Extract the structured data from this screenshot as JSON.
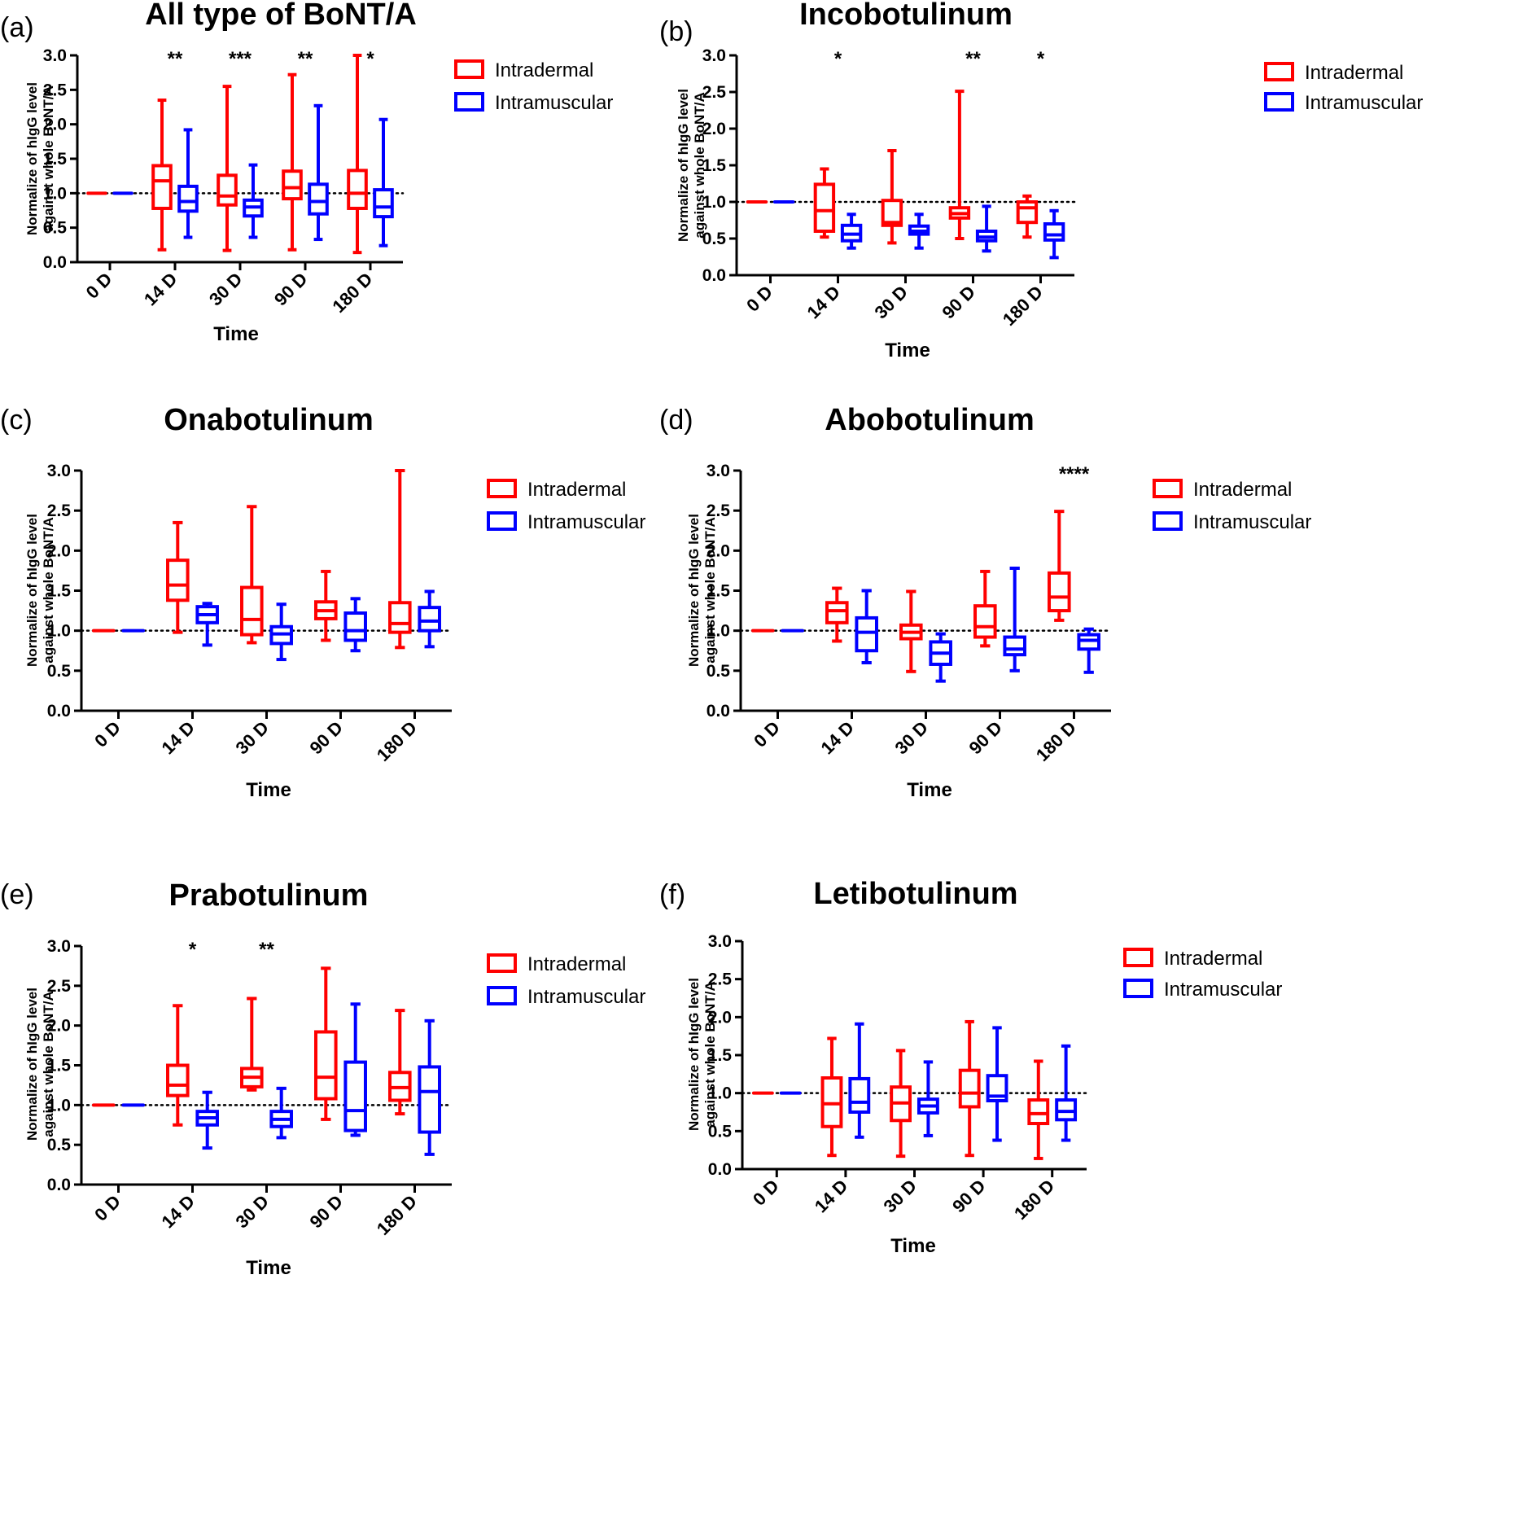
{
  "figure": {
    "colors": {
      "intradermal": "#ff0000",
      "intramuscular": "#0000ff",
      "axis": "#000000"
    }
  },
  "chart_data": [
    {
      "panel_label": "(a)",
      "title": "All type of BoNT/A",
      "type": "box",
      "xlabel": "Time",
      "ylabel_lines": [
        "Normalize of hIgG level",
        "against whole BoNT/A"
      ],
      "categories": [
        "0 D",
        "14 D",
        "30 D",
        "90 D",
        "180 D"
      ],
      "ylim": [
        0,
        3
      ],
      "yticks": [
        "0.0",
        "0.5",
        "1.0",
        "1.5",
        "2.0",
        "2.5",
        "3.0"
      ],
      "reference_line": 1.0,
      "legend": [
        "Intradermal",
        "Intramuscular"
      ],
      "significance": [
        "",
        "**",
        "***",
        "**",
        "*"
      ],
      "series": [
        {
          "name": "Intradermal",
          "boxes": [
            [
              1,
              1,
              1,
              1,
              1
            ],
            [
              0.18,
              0.78,
              1.18,
              1.4,
              2.35
            ],
            [
              0.17,
              0.83,
              0.96,
              1.26,
              2.55
            ],
            [
              0.18,
              0.92,
              1.08,
              1.32,
              2.72
            ],
            [
              0.14,
              0.78,
              1.0,
              1.33,
              3.0
            ]
          ]
        },
        {
          "name": "Intramuscular",
          "boxes": [
            [
              1,
              1,
              1,
              1,
              1
            ],
            [
              0.36,
              0.74,
              0.88,
              1.1,
              1.92
            ],
            [
              0.36,
              0.67,
              0.8,
              0.9,
              1.41
            ],
            [
              0.33,
              0.7,
              0.88,
              1.13,
              2.27
            ],
            [
              0.24,
              0.66,
              0.8,
              1.05,
              2.07
            ]
          ]
        }
      ]
    },
    {
      "panel_label": "(b)",
      "title": "Incobotulinum",
      "type": "box",
      "xlabel": "Time",
      "ylabel_lines": [
        "Normalize of hIgG level",
        "against whole BoNT/A"
      ],
      "categories": [
        "0 D",
        "14 D",
        "30 D",
        "90 D",
        "180 D"
      ],
      "ylim": [
        0,
        3
      ],
      "yticks": [
        "0.0",
        "0.5",
        "1.0",
        "1.5",
        "2.0",
        "2.5",
        "3.0"
      ],
      "reference_line": 1.0,
      "legend": [
        "Intradermal",
        "Intramuscular"
      ],
      "significance": [
        "",
        "*",
        "",
        "**",
        "*"
      ],
      "series": [
        {
          "name": "Intradermal",
          "boxes": [
            [
              1,
              1,
              1,
              1,
              1
            ],
            [
              0.52,
              0.6,
              0.88,
              1.24,
              1.45
            ],
            [
              0.44,
              0.68,
              0.72,
              1.02,
              1.7
            ],
            [
              0.5,
              0.78,
              0.84,
              0.92,
              2.51
            ],
            [
              0.52,
              0.72,
              0.92,
              1.0,
              1.08
            ]
          ]
        },
        {
          "name": "Intramuscular",
          "boxes": [
            [
              1,
              1,
              1,
              1,
              1
            ],
            [
              0.37,
              0.47,
              0.56,
              0.68,
              0.83
            ],
            [
              0.37,
              0.56,
              0.6,
              0.67,
              0.83
            ],
            [
              0.33,
              0.47,
              0.52,
              0.6,
              0.94
            ],
            [
              0.24,
              0.48,
              0.55,
              0.7,
              0.88
            ]
          ]
        }
      ]
    },
    {
      "panel_label": "(c)",
      "title": "Onabotulinum",
      "type": "box",
      "xlabel": "Time",
      "ylabel_lines": [
        "Normalize of hIgG level",
        "against whole BoNT/A"
      ],
      "categories": [
        "0 D",
        "14 D",
        "30 D",
        "90 D",
        "180 D"
      ],
      "ylim": [
        0,
        3
      ],
      "yticks": [
        "0.0",
        "0.5",
        "1.0",
        "1.5",
        "2.0",
        "2.5",
        "3.0"
      ],
      "reference_line": 1.0,
      "legend": [
        "Intradermal",
        "Intramuscular"
      ],
      "significance": [
        "",
        "",
        "",
        "",
        ""
      ],
      "series": [
        {
          "name": "Intradermal",
          "boxes": [
            [
              1,
              1,
              1,
              1,
              1
            ],
            [
              0.98,
              1.38,
              1.57,
              1.88,
              2.35
            ],
            [
              0.85,
              0.95,
              1.14,
              1.54,
              2.55
            ],
            [
              0.88,
              1.15,
              1.25,
              1.36,
              1.74
            ],
            [
              0.79,
              0.98,
              1.09,
              1.35,
              3.0
            ]
          ]
        },
        {
          "name": "Intramuscular",
          "boxes": [
            [
              1,
              1,
              1,
              1,
              1
            ],
            [
              0.82,
              1.1,
              1.2,
              1.3,
              1.34
            ],
            [
              0.64,
              0.84,
              0.96,
              1.05,
              1.33
            ],
            [
              0.75,
              0.88,
              1.0,
              1.22,
              1.4
            ],
            [
              0.8,
              1.0,
              1.12,
              1.29,
              1.49
            ]
          ]
        }
      ]
    },
    {
      "panel_label": "(d)",
      "title": "Abobotulinum",
      "type": "box",
      "xlabel": "Time",
      "ylabel_lines": [
        "Normalize of hIgG level",
        "against whole BoNT/A"
      ],
      "categories": [
        "0 D",
        "14 D",
        "30 D",
        "90 D",
        "180 D"
      ],
      "ylim": [
        0,
        3
      ],
      "yticks": [
        "0.0",
        "0.5",
        "1.0",
        "1.5",
        "2.0",
        "2.5",
        "3.0"
      ],
      "reference_line": 1.0,
      "legend": [
        "Intradermal",
        "Intramuscular"
      ],
      "significance": [
        "",
        "",
        "",
        "",
        "****"
      ],
      "series": [
        {
          "name": "Intradermal",
          "boxes": [
            [
              1,
              1,
              1,
              1,
              1
            ],
            [
              0.87,
              1.1,
              1.25,
              1.35,
              1.53
            ],
            [
              0.49,
              0.9,
              0.98,
              1.07,
              1.49
            ],
            [
              0.81,
              0.92,
              1.05,
              1.31,
              1.74
            ],
            [
              1.13,
              1.25,
              1.42,
              1.72,
              2.49
            ]
          ]
        },
        {
          "name": "Intramuscular",
          "boxes": [
            [
              1,
              1,
              1,
              1,
              1
            ],
            [
              0.6,
              0.75,
              0.98,
              1.16,
              1.5
            ],
            [
              0.37,
              0.58,
              0.72,
              0.86,
              0.96
            ],
            [
              0.5,
              0.7,
              0.77,
              0.92,
              1.78
            ],
            [
              0.48,
              0.77,
              0.88,
              0.95,
              1.02
            ]
          ]
        }
      ]
    },
    {
      "panel_label": "(e)",
      "title": "Prabotulinum",
      "type": "box",
      "xlabel": "Time",
      "ylabel_lines": [
        "Normalize of hIgG level",
        "against whole BoNT/A"
      ],
      "categories": [
        "0 D",
        "14 D",
        "30 D",
        "90 D",
        "180 D"
      ],
      "ylim": [
        0,
        3
      ],
      "yticks": [
        "0.0",
        "0.5",
        "1.0",
        "1.5",
        "2.0",
        "2.5",
        "3.0"
      ],
      "reference_line": 1.0,
      "legend": [
        "Intradermal",
        "Intramuscular"
      ],
      "significance": [
        "",
        "*",
        "**",
        "",
        ""
      ],
      "series": [
        {
          "name": "Intradermal",
          "boxes": [
            [
              1,
              1,
              1,
              1,
              1
            ],
            [
              0.75,
              1.12,
              1.25,
              1.5,
              2.25
            ],
            [
              1.19,
              1.23,
              1.35,
              1.46,
              2.34
            ],
            [
              0.82,
              1.08,
              1.35,
              1.92,
              2.72
            ],
            [
              0.89,
              1.06,
              1.22,
              1.41,
              2.19
            ]
          ]
        },
        {
          "name": "Intramuscular",
          "boxes": [
            [
              1,
              1,
              1,
              1,
              1
            ],
            [
              0.46,
              0.75,
              0.84,
              0.92,
              1.16
            ],
            [
              0.59,
              0.73,
              0.82,
              0.92,
              1.21
            ],
            [
              0.62,
              0.68,
              0.93,
              1.54,
              2.27
            ],
            [
              0.38,
              0.66,
              1.17,
              1.48,
              2.06
            ]
          ]
        }
      ]
    },
    {
      "panel_label": "(f)",
      "title": "Letibotulinum",
      "type": "box",
      "xlabel": "Time",
      "ylabel_lines": [
        "Normalize of hIgG level",
        "against whole BoNT/A"
      ],
      "categories": [
        "0 D",
        "14 D",
        "30 D",
        "90 D",
        "180 D"
      ],
      "ylim": [
        0,
        3
      ],
      "yticks": [
        "0.0",
        "0.5",
        "1.0",
        "1.5",
        "2.0",
        "2.5",
        "3.0"
      ],
      "reference_line": 1.0,
      "legend": [
        "Intradermal",
        "Intramuscular"
      ],
      "significance": [
        "",
        "",
        "",
        "",
        ""
      ],
      "series": [
        {
          "name": "Intradermal",
          "boxes": [
            [
              1,
              1,
              1,
              1,
              1
            ],
            [
              0.18,
              0.56,
              0.86,
              1.2,
              1.72
            ],
            [
              0.17,
              0.64,
              0.87,
              1.08,
              1.56
            ],
            [
              0.18,
              0.82,
              1.0,
              1.3,
              1.94
            ],
            [
              0.14,
              0.6,
              0.73,
              0.91,
              1.42
            ]
          ]
        },
        {
          "name": "Intramuscular",
          "boxes": [
            [
              1,
              1,
              1,
              1,
              1
            ],
            [
              0.42,
              0.75,
              0.88,
              1.19,
              1.91
            ],
            [
              0.44,
              0.74,
              0.83,
              0.92,
              1.41
            ],
            [
              0.38,
              0.9,
              0.96,
              1.23,
              1.86
            ],
            [
              0.38,
              0.65,
              0.76,
              0.91,
              1.62
            ]
          ]
        }
      ]
    }
  ]
}
